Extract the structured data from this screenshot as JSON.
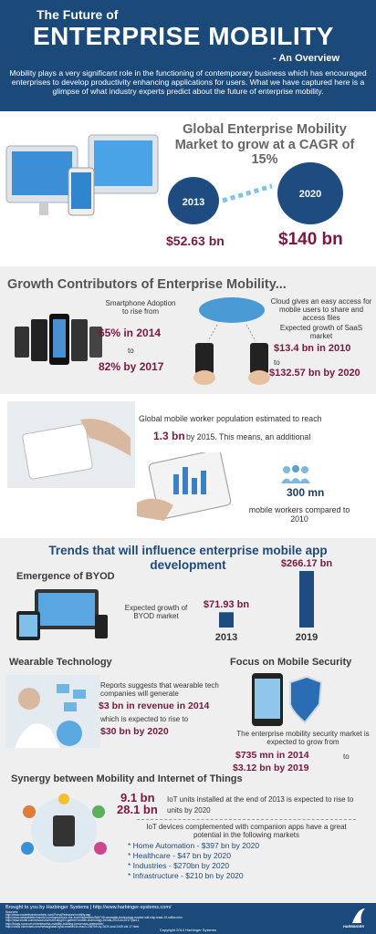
{
  "header": {
    "title_small": "The Future of",
    "title_main": "ENTERPRISE MOBILITY",
    "subtitle": "- An Overview",
    "intro": "Mobility plays a very significant role in the functioning of contemporary business which has encouraged enterprises to develop productivity enhancing applications for users. What we have captured here is a glimpse of what industry experts predict about the future of enterprise mobility."
  },
  "market": {
    "title": "Global Enterprise Mobility Market to grow at a CAGR of 15%",
    "years": [
      "2013",
      "2020"
    ],
    "values": [
      "$52.63 bn",
      "$140 bn"
    ]
  },
  "growth": {
    "title": "Growth Contributors of Enterprise Mobility...",
    "smartphone": {
      "text": "Smartphone Adoption to rise from",
      "from": "65% in 2014",
      "to": "to",
      "until": "82% by 2017"
    },
    "cloud": {
      "text": "Cloud gives an easy access for mobile users to share and access files",
      "saas": "Expected growth of SaaS market",
      "from": "$13.4 bn in 2010",
      "to": "to",
      "until": "$132.57 bn by 2020"
    }
  },
  "workers": {
    "text": "Global mobile worker population estimated to reach",
    "figure": "1.3 bn",
    "text_after": "by 2015. This means, an additional",
    "additional": "300 mn",
    "additional_text": "mobile workers compared to 2010"
  },
  "trends": {
    "title": "Trends that will influence enterprise mobile app development",
    "byod": {
      "title": "Emergence of BYOD",
      "text": "Expected growth of BYOD market",
      "categories": [
        "2013",
        "2019"
      ],
      "values": [
        71.93,
        266.17
      ],
      "value_labels": [
        "$71.93 bn",
        "$266.17 bn"
      ]
    },
    "wearable": {
      "title": "Wearable Technology",
      "text": "Reports suggests that wearable tech companies will generate",
      "figure1": "$3 bn in revenue in 2014",
      "text2": "which is expected to rise to",
      "figure2": "$30 bn by 2020"
    },
    "security": {
      "title": "Focus on Mobile Security",
      "text": "The enterprise mobility security market is expected to grow from",
      "figure1": "$735 mn in 2014",
      "to": "to",
      "figure2": "$3.12 bn by 2019"
    },
    "iot": {
      "title": "Synergy between Mobility and Internet of Things",
      "figure1": "9.1 bn",
      "figure2": "28.1 bn",
      "text1": "IoT units installed at the end of 2013 is expected to rise to",
      "text2": "units by 2020",
      "text3": "IoT devices complemented with companion apps have a great potential in the following markets",
      "markets": [
        "* Home Automation -  $397 bn by 2020",
        "* Healthcare - $47 bn by 2020",
        "* Industries - $270bn by 2020",
        "* Infrastructure - $210 bn by 2020"
      ]
    }
  },
  "footer": {
    "credit": "Brought to you by Harbinger Systems | http://www.harbinger-systems.com/",
    "sources_label": "Sources:",
    "sources": [
      "http://www.marketsandmarkets.com/PressReleases/mobility.asp",
      "http://www.wearabletechworld.com/topics/from-the-experts/articles/366748-wearable-technology-market-will-ship-least-10-million.htm",
      "http://www.mobil.com/resources/mobi-blog/10-gartner-mobile-technology-trends-2013-to-2017-part-1",
      "http://blogs.ruzzcom.im/enterprise-mobility-building-tomorrows-enterprise/",
      "http://cloud.cioreview.com/news/global-byod-market-to-reach-2387bn-by-2020-and-2449-cid-17.html"
    ],
    "copyright": "Copyright 2014 Harbinger Systems",
    "logo": "HARBINGER"
  }
}
